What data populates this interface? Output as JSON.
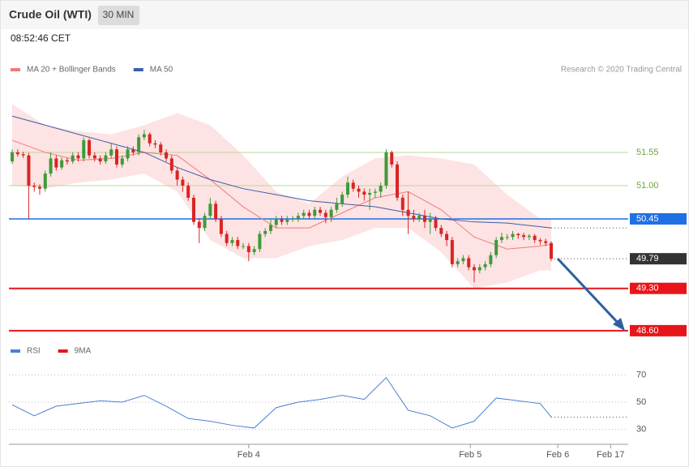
{
  "header": {
    "title": "Crude Oil (WTI)",
    "interval": "30 MIN",
    "time": "08:52:46 CET"
  },
  "chart_data": [
    {
      "type": "candlestick",
      "source": "Research © 2020 Trading Central",
      "xlim": [
        -0.6,
        112
      ],
      "ylim": [
        48.55,
        52.75
      ],
      "up_color": "#3f9a3a",
      "down_color": "#d92424",
      "x": [
        0,
        1,
        2,
        3,
        4,
        5,
        6,
        7,
        8,
        9,
        10,
        11,
        12,
        13,
        14,
        15,
        16,
        17,
        18,
        19,
        20,
        21,
        22,
        23,
        24,
        25,
        26,
        27,
        28,
        29,
        30,
        31,
        32,
        33,
        34,
        35,
        36,
        37,
        38,
        39,
        40,
        41,
        42,
        43,
        44,
        45,
        46,
        47,
        48,
        49,
        50,
        51,
        52,
        53,
        54,
        55,
        56,
        57,
        58,
        59,
        60,
        61,
        62,
        63,
        64,
        65,
        66,
        67,
        68,
        69,
        70,
        71,
        72,
        73,
        74,
        75,
        76,
        77,
        78,
        79,
        80,
        81,
        82,
        83,
        84,
        85,
        86,
        87,
        88,
        89,
        90,
        91,
        92,
        93,
        94,
        95,
        96,
        97,
        98
      ],
      "open": [
        51.4,
        51.55,
        51.52,
        51.5,
        51.0,
        50.98,
        50.95,
        51.2,
        51.45,
        51.3,
        51.42,
        51.4,
        51.5,
        51.45,
        51.75,
        51.5,
        51.45,
        51.4,
        51.5,
        51.6,
        51.35,
        51.45,
        51.6,
        51.55,
        51.8,
        51.85,
        51.7,
        51.68,
        51.55,
        51.45,
        51.25,
        51.1,
        51.0,
        50.8,
        50.4,
        50.3,
        50.5,
        50.7,
        50.45,
        50.2,
        50.05,
        50.1,
        50.0,
        50.0,
        49.9,
        49.95,
        50.2,
        50.25,
        50.35,
        50.45,
        50.4,
        50.45,
        50.45,
        50.5,
        50.55,
        50.5,
        50.6,
        50.55,
        50.48,
        50.6,
        50.7,
        50.85,
        51.05,
        50.95,
        50.9,
        50.85,
        50.88,
        50.9,
        51.0,
        51.55,
        51.35,
        50.8,
        50.6,
        50.5,
        50.45,
        50.5,
        50.4,
        50.45,
        50.3,
        50.2,
        50.1,
        49.7,
        49.75,
        49.8,
        49.65,
        49.6,
        49.65,
        49.7,
        49.85,
        50.1,
        50.15,
        50.15,
        50.2,
        50.18,
        50.15,
        50.17,
        50.1,
        50.08,
        50.05
      ],
      "high": [
        51.6,
        51.6,
        51.56,
        51.54,
        51.05,
        51.02,
        51.25,
        51.55,
        51.5,
        51.47,
        51.46,
        51.55,
        51.55,
        51.8,
        51.78,
        51.55,
        51.5,
        51.55,
        51.7,
        51.65,
        51.5,
        51.65,
        51.65,
        51.85,
        51.92,
        51.88,
        51.75,
        51.72,
        51.6,
        51.5,
        51.3,
        51.15,
        51.05,
        50.85,
        50.45,
        50.55,
        50.8,
        50.75,
        50.5,
        50.25,
        50.15,
        50.15,
        50.05,
        50.05,
        50.0,
        50.25,
        50.3,
        50.45,
        50.5,
        50.5,
        50.5,
        50.5,
        50.55,
        50.6,
        50.6,
        50.65,
        50.65,
        50.6,
        50.65,
        50.8,
        50.9,
        51.15,
        51.1,
        51.0,
        50.95,
        50.95,
        50.95,
        51.05,
        51.6,
        51.58,
        51.4,
        50.85,
        50.9,
        50.6,
        50.55,
        50.6,
        50.55,
        50.5,
        50.35,
        50.25,
        50.15,
        49.8,
        49.85,
        49.85,
        49.7,
        49.7,
        49.75,
        49.9,
        50.15,
        50.22,
        50.2,
        50.25,
        50.22,
        50.22,
        50.2,
        50.2,
        50.13,
        50.12,
        50.08
      ],
      "low": [
        51.36,
        51.48,
        51.46,
        50.45,
        50.9,
        50.85,
        50.9,
        51.15,
        51.25,
        51.26,
        51.35,
        51.36,
        51.4,
        51.4,
        51.45,
        51.4,
        51.35,
        51.36,
        51.45,
        51.3,
        51.3,
        51.4,
        51.5,
        51.5,
        51.75,
        51.65,
        51.62,
        51.5,
        51.4,
        51.2,
        51.0,
        50.9,
        50.75,
        50.35,
        50.05,
        50.25,
        50.45,
        50.4,
        50.15,
        50.0,
        50.0,
        49.95,
        49.95,
        49.75,
        49.85,
        49.9,
        50.15,
        50.2,
        50.3,
        50.35,
        50.35,
        50.4,
        50.4,
        50.45,
        50.45,
        50.45,
        50.5,
        50.38,
        50.4,
        50.55,
        50.65,
        50.8,
        50.9,
        50.8,
        50.75,
        50.6,
        50.8,
        50.8,
        50.95,
        51.3,
        50.75,
        50.5,
        50.2,
        50.4,
        50.4,
        50.3,
        50.2,
        50.25,
        50.15,
        50.0,
        49.65,
        49.65,
        49.7,
        49.6,
        49.4,
        49.55,
        49.6,
        49.65,
        49.8,
        50.05,
        50.1,
        50.1,
        50.12,
        50.1,
        50.1,
        50.05,
        50.02,
        50.0,
        49.75
      ],
      "close": [
        51.55,
        51.52,
        51.5,
        51.0,
        50.98,
        50.95,
        51.2,
        51.45,
        51.3,
        51.42,
        51.4,
        51.5,
        51.45,
        51.75,
        51.5,
        51.45,
        51.4,
        51.5,
        51.6,
        51.35,
        51.45,
        51.6,
        51.55,
        51.8,
        51.85,
        51.7,
        51.68,
        51.55,
        51.45,
        51.25,
        51.1,
        51.0,
        50.8,
        50.4,
        50.3,
        50.5,
        50.7,
        50.45,
        50.2,
        50.05,
        50.1,
        50.0,
        50.0,
        49.9,
        49.95,
        50.2,
        50.25,
        50.35,
        50.45,
        50.4,
        50.45,
        50.45,
        50.5,
        50.55,
        50.5,
        50.6,
        50.55,
        50.48,
        50.6,
        50.7,
        50.85,
        51.05,
        50.95,
        50.9,
        50.85,
        50.88,
        50.9,
        51.0,
        51.55,
        51.35,
        50.8,
        50.6,
        50.5,
        50.45,
        50.5,
        50.4,
        50.45,
        50.3,
        50.2,
        50.1,
        49.7,
        49.75,
        49.8,
        49.65,
        49.6,
        49.65,
        49.7,
        49.85,
        50.1,
        50.15,
        50.15,
        50.2,
        50.18,
        50.15,
        50.17,
        50.1,
        50.08,
        50.05,
        49.79
      ],
      "series": [
        {
          "name": "MA 20 + Bollinger Bands",
          "color": "#f27a7a",
          "band_color": "#fde3e3",
          "x": [
            0,
            6,
            12,
            18,
            24,
            30,
            36,
            42,
            48,
            54,
            60,
            66,
            72,
            78,
            84,
            90,
            96,
            98
          ],
          "values": [
            51.75,
            51.55,
            51.42,
            51.45,
            51.55,
            51.5,
            51.1,
            50.65,
            50.3,
            50.3,
            50.55,
            50.8,
            50.9,
            50.6,
            50.15,
            49.95,
            50.0,
            50.03
          ],
          "upper": [
            52.35,
            52.0,
            51.9,
            51.85,
            52.0,
            52.2,
            52.0,
            51.5,
            50.9,
            50.7,
            51.15,
            51.45,
            51.5,
            51.45,
            51.35,
            50.85,
            50.45,
            50.45
          ],
          "lower": [
            51.0,
            50.95,
            51.05,
            51.1,
            51.2,
            50.9,
            50.1,
            49.8,
            49.8,
            50.0,
            50.1,
            50.3,
            50.3,
            49.9,
            49.3,
            49.4,
            49.6,
            49.6
          ]
        },
        {
          "name": "MA 50",
          "color": "#3d5ea8",
          "x": [
            0,
            6,
            12,
            18,
            24,
            30,
            36,
            42,
            48,
            54,
            60,
            66,
            72,
            78,
            84,
            90,
            96,
            98
          ],
          "values": [
            52.15,
            52.0,
            51.85,
            51.7,
            51.55,
            51.3,
            51.1,
            50.95,
            50.85,
            50.75,
            50.7,
            50.65,
            50.55,
            50.45,
            50.4,
            50.38,
            50.32,
            50.3
          ]
        }
      ],
      "levels": [
        {
          "value": 51.55,
          "color": "#6aa83a",
          "line_color": "#b9d894",
          "box": false,
          "width": 1
        },
        {
          "value": 51,
          "label": "51.00",
          "color": "#6aa83a",
          "line_color": "#b9d894",
          "box": false,
          "width": 1
        },
        {
          "value": 50.45,
          "color": "#1f6fe5",
          "line_color": "#1f6fe5",
          "box": true,
          "width": 1.5
        },
        {
          "value": 49.79,
          "color": "#333333",
          "line_color": "#555555",
          "box": true,
          "width": 1,
          "dotted": true
        },
        {
          "value": 49.3,
          "label": "49.30",
          "color": "#e8141a",
          "line_color": "#e8141a",
          "box": true,
          "width": 2
        },
        {
          "value": 48.6,
          "label": "48.60",
          "color": "#e8141a",
          "line_color": "#e8141a",
          "box": true,
          "width": 2
        }
      ]
    },
    {
      "type": "line",
      "xlim": [
        -0.6,
        112
      ],
      "ylim": [
        25,
        75
      ],
      "yticks": [
        30,
        50,
        70
      ],
      "xticks": [
        {
          "value": 43,
          "label": "Feb 4"
        },
        {
          "value": 83.3,
          "label": "Feb 5"
        },
        {
          "value": 99.2,
          "label": "Feb 6"
        },
        {
          "value": 108.8,
          "label": "Feb 17"
        }
      ],
      "legend": [
        {
          "name": "RSI",
          "color": "#4a7fd6"
        },
        {
          "name": "9MA",
          "color": "#e8141a"
        }
      ],
      "x": [
        0,
        4,
        8,
        12,
        16,
        20,
        24,
        28,
        32,
        36,
        40,
        44,
        48,
        52,
        56,
        60,
        64,
        68,
        72,
        76,
        80,
        84,
        88,
        92,
        96,
        98
      ],
      "values": [
        48,
        40,
        47,
        49,
        51,
        50,
        55,
        47,
        38,
        36,
        33,
        31,
        46,
        50,
        52,
        55,
        52,
        68,
        44,
        40,
        31,
        36,
        53,
        51,
        49,
        39
      ],
      "color": "#4a7fd6"
    }
  ]
}
